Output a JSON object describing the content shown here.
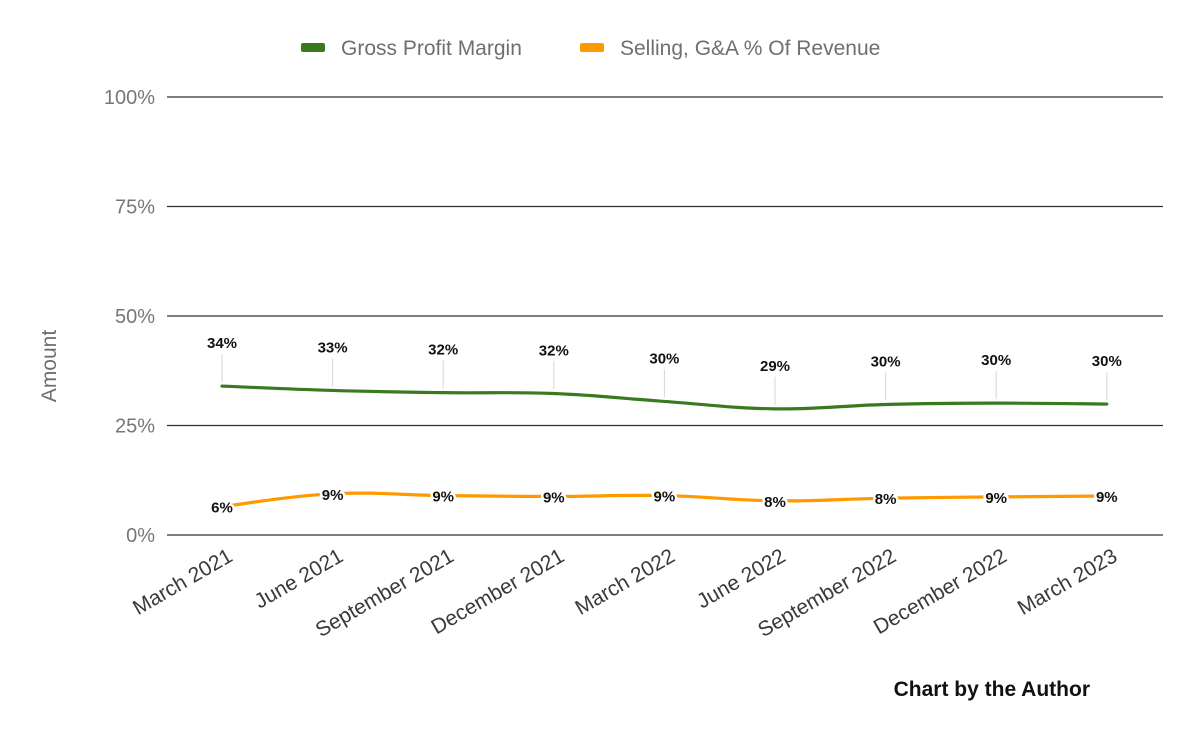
{
  "chart_data": {
    "type": "line",
    "categories": [
      "March 2021",
      "June 2021",
      "September 2021",
      "December 2021",
      "March 2022",
      "June 2022",
      "September 2022",
      "December 2022",
      "March 2023"
    ],
    "series": [
      {
        "name": "Gross Profit Margin",
        "color": "#3a7a1e",
        "values": [
          34,
          33,
          32.5,
          32.3,
          30.5,
          28.8,
          29.8,
          30.1,
          29.9
        ],
        "labels": [
          "34%",
          "33%",
          "32%",
          "32%",
          "30%",
          "29%",
          "30%",
          "30%",
          "30%"
        ]
      },
      {
        "name": "Selling, G&A % Of Revenue",
        "color": "#ff9900",
        "values": [
          6.5,
          9.4,
          9.0,
          8.8,
          9.0,
          7.8,
          8.4,
          8.7,
          8.9
        ],
        "labels": [
          "6%",
          "9%",
          "9%",
          "9%",
          "9%",
          "8%",
          "8%",
          "9%",
          "9%"
        ]
      }
    ],
    "ylabel": "Amount",
    "xlabel": "",
    "ylim": [
      0,
      100
    ],
    "yticks": [
      0,
      25,
      50,
      75,
      100
    ],
    "ytick_labels": [
      "0%",
      "25%",
      "50%",
      "75%",
      "100%"
    ],
    "grid": true,
    "legend": "top-center"
  },
  "credit": "Chart by the Author"
}
